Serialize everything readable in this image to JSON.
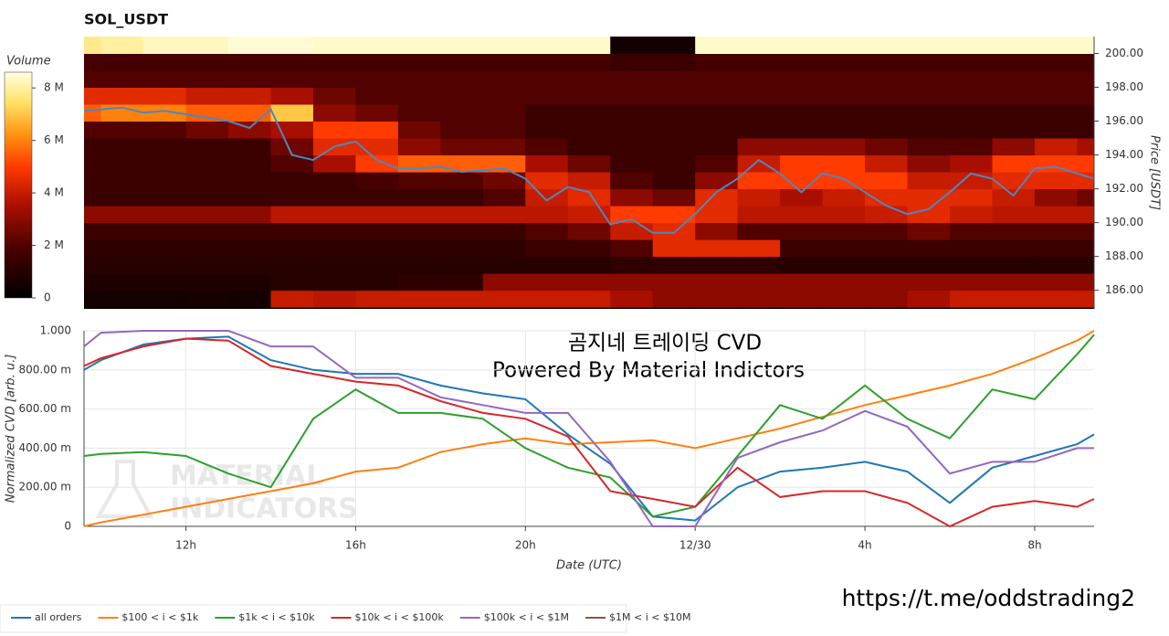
{
  "chart_data": [
    {
      "type": "heatmap",
      "title": "SOL_USDT",
      "y_label": "Price [USDT]",
      "colorbar_label": "Volume",
      "xlim": [
        9.6,
        33.4
      ],
      "x_edges": [
        9.6,
        10,
        11,
        12,
        13,
        14,
        15,
        16,
        17,
        18,
        19,
        20,
        21,
        22,
        23,
        24,
        25,
        26,
        27,
        28,
        29,
        30,
        31,
        32,
        33,
        33.4
      ],
      "y_edges": [
        185,
        186,
        187,
        188,
        189,
        190,
        191,
        192,
        193,
        194,
        195,
        196,
        197,
        198,
        199,
        200,
        201
      ],
      "z": [
        [
          0.5,
          0.5,
          0.5,
          0.6,
          0.5,
          4,
          3.8,
          4,
          4,
          4,
          4,
          4,
          4,
          3.5,
          3,
          3,
          3,
          3,
          3,
          3,
          3.5,
          4,
          4,
          4,
          4
        ],
        [
          0.8,
          0.8,
          0.8,
          0.8,
          0.8,
          1,
          1,
          1,
          1.2,
          1.2,
          3,
          3,
          3,
          3,
          3,
          3,
          3,
          3,
          3,
          3,
          3,
          3,
          3,
          3,
          3
        ],
        [
          1,
          1,
          1,
          1,
          1,
          1,
          1,
          1,
          1,
          1,
          1,
          1,
          1,
          1.2,
          1.2,
          1.2,
          1.2,
          1,
          1,
          1,
          1,
          1,
          1,
          1,
          1
        ],
        [
          1.2,
          1.2,
          1.2,
          1.2,
          1.2,
          1.2,
          1.2,
          1.2,
          1.2,
          1.2,
          1.2,
          1.5,
          1.5,
          2,
          4.5,
          4.5,
          4.5,
          1.5,
          1.5,
          1.5,
          1.5,
          1.5,
          1.5,
          1.5,
          1.5
        ],
        [
          1.5,
          1.5,
          1.5,
          1.5,
          1.5,
          1.5,
          1.5,
          1.5,
          1.5,
          1.5,
          1.5,
          2,
          2.5,
          4,
          4.5,
          3,
          2,
          2,
          2,
          2,
          2.5,
          2,
          2,
          2,
          2
        ],
        [
          3,
          3,
          3,
          3,
          3,
          3.8,
          3.8,
          3.8,
          3.8,
          3.8,
          3.8,
          3.8,
          4,
          5,
          5,
          4.5,
          3.8,
          3.8,
          3.8,
          4,
          4.5,
          4,
          3.8,
          3.8,
          3.8
        ],
        [
          1.5,
          1.5,
          1.5,
          1.5,
          1.5,
          1.5,
          1.5,
          1.5,
          1.5,
          1.5,
          2,
          4,
          4.5,
          3,
          2.5,
          4.5,
          4,
          3.5,
          4,
          4.5,
          4.5,
          4.5,
          4,
          3,
          2.5
        ],
        [
          1.5,
          1.5,
          1.5,
          1.5,
          1.5,
          1.5,
          1.5,
          1.8,
          2,
          2,
          2.5,
          4.5,
          4,
          2,
          1.5,
          3,
          5,
          5,
          5,
          5,
          4,
          4,
          4.5,
          4.5,
          4.5
        ],
        [
          1.5,
          1.5,
          1.5,
          1.5,
          1.5,
          2,
          3.5,
          5,
          5.5,
          5.5,
          5.5,
          3.5,
          2.5,
          1.5,
          1.5,
          2,
          4,
          5,
          5,
          4,
          3,
          3.5,
          5,
          5,
          5
        ],
        [
          1.5,
          1.5,
          1.5,
          1.5,
          1.5,
          2.5,
          4.5,
          4.5,
          3,
          2.5,
          2.5,
          2,
          1.5,
          1.5,
          1.5,
          1.5,
          3,
          3,
          3,
          2.5,
          2,
          2,
          3,
          4,
          3.5
        ],
        [
          2,
          2,
          2,
          2.5,
          3,
          3.5,
          5,
          5,
          2.5,
          2,
          2,
          1.5,
          1.5,
          1.5,
          1.5,
          1.5,
          1.5,
          1.5,
          1.5,
          1.5,
          1.5,
          1.5,
          1.5,
          1.5,
          1.5
        ],
        [
          5.5,
          6,
          6,
          5.5,
          5.5,
          7,
          3,
          2.5,
          2,
          2,
          2,
          1.5,
          1.5,
          1.5,
          1.5,
          1.5,
          1.5,
          1.5,
          1.5,
          1.5,
          1.5,
          1.5,
          1.5,
          1.5,
          1.5
        ],
        [
          4.5,
          4.5,
          4.5,
          4,
          4,
          3.5,
          2.5,
          2,
          2,
          2,
          2,
          2,
          2,
          2,
          2,
          2,
          2,
          2,
          2,
          2,
          2,
          2,
          2,
          2,
          2
        ],
        [
          2,
          2,
          2,
          2,
          2,
          2,
          2,
          2,
          2,
          2,
          2,
          2,
          2,
          2,
          2,
          2,
          2,
          2,
          2,
          2,
          2,
          2,
          2,
          2,
          2
        ],
        [
          1.8,
          1.8,
          1.8,
          1.8,
          1.8,
          1.8,
          1.8,
          1.8,
          1.8,
          1.8,
          1.8,
          1.8,
          1.8,
          1.5,
          1.5,
          1.8,
          1.8,
          1.8,
          1.8,
          1.8,
          1.8,
          1.8,
          1.8,
          1.8,
          1.8
        ],
        [
          7.8,
          8,
          8.3,
          8.3,
          8.5,
          8.5,
          8.4,
          8.4,
          8.4,
          8.4,
          8.4,
          8.4,
          8.4,
          0.5,
          0.5,
          8.4,
          8.4,
          8.4,
          8.4,
          8.4,
          8.4,
          8.4,
          8.4,
          8.4,
          8.4
        ]
      ],
      "clim": [
        0,
        8.6
      ],
      "cticks": [
        0,
        {
          "value": 2,
          "label": "2 M"
        },
        {
          "value": 4,
          "label": "4 M"
        },
        {
          "value": 6,
          "label": "6 M"
        },
        {
          "value": 8,
          "label": "8 M"
        }
      ],
      "ylim": [
        184.9,
        201.0
      ],
      "yticks": [
        {
          "value": 186,
          "label": "186.00"
        },
        {
          "value": 188,
          "label": "188.00"
        },
        {
          "value": 190,
          "label": "190.00"
        },
        {
          "value": 192,
          "label": "192.00"
        },
        {
          "value": 194,
          "label": "194.00"
        },
        {
          "value": 196,
          "label": "196.00"
        },
        {
          "value": 198,
          "label": "198.00"
        },
        {
          "value": 200,
          "label": "200.00"
        }
      ],
      "price_line": {
        "color": "#4f86c0",
        "x": [
          9.6,
          10,
          10.5,
          11,
          11.5,
          12,
          12.5,
          13,
          13.5,
          14,
          14.5,
          15,
          15.5,
          16,
          16.5,
          17,
          17.5,
          18,
          18.5,
          19,
          19.5,
          20,
          20.5,
          21,
          21.5,
          22,
          22.5,
          23,
          23.5,
          24,
          24.5,
          25,
          25.5,
          26,
          26.5,
          27,
          27.5,
          28,
          28.5,
          29,
          29.5,
          30,
          30.5,
          31,
          31.5,
          32,
          32.5,
          33,
          33.4
        ],
        "values": [
          196.6,
          196.7,
          196.8,
          196.5,
          196.6,
          196.4,
          196.2,
          196.0,
          195.6,
          196.7,
          194.0,
          193.7,
          194.5,
          194.8,
          193.7,
          193.2,
          193.2,
          193.3,
          193.0,
          193.1,
          193.2,
          192.6,
          191.3,
          192.1,
          191.8,
          189.9,
          190.2,
          189.4,
          189.4,
          190.5,
          191.8,
          192.6,
          193.7,
          192.9,
          191.8,
          192.9,
          192.6,
          191.8,
          191.0,
          190.5,
          190.8,
          191.8,
          192.9,
          192.6,
          191.6,
          193.2,
          193.3,
          192.9,
          192.6
        ]
      }
    },
    {
      "type": "line",
      "y_label": "Normalized CVD [arb. u.]",
      "x_label": "Date (UTC)",
      "annotations": [
        "곰지네 트레이딩 CVD",
        "Powered By Material Indictors"
      ],
      "watermark": [
        "MATERIAL",
        "INDICATORS"
      ],
      "footer": "https://t.me/oddstrading2",
      "xlim": [
        9.6,
        33.4
      ],
      "xticks": [
        {
          "value": 12,
          "label": "12h"
        },
        {
          "value": 16,
          "label": "16h"
        },
        {
          "value": 20,
          "label": "20h"
        },
        {
          "value": 24,
          "label": "12/30"
        },
        {
          "value": 28,
          "label": "4h"
        },
        {
          "value": 32,
          "label": "8h"
        }
      ],
      "ylim": [
        0,
        1
      ],
      "yticks": [
        0,
        {
          "value": 0.2,
          "label": "200.00 m"
        },
        {
          "value": 0.4,
          "label": "400.00 m"
        },
        {
          "value": 0.6,
          "label": "600.00 m"
        },
        {
          "value": 0.8,
          "label": "800.00 m"
        },
        {
          "value": 1,
          "label": "1.000"
        }
      ],
      "grid": true,
      "x": [
        9.6,
        10,
        11,
        12,
        13,
        14,
        15,
        16,
        17,
        18,
        19,
        20,
        21,
        22,
        23,
        24,
        25,
        26,
        27,
        28,
        29,
        30,
        31,
        32,
        33,
        33.4
      ],
      "series": [
        {
          "name": "all orders",
          "color": "#1f77b4",
          "values": [
            0.8,
            0.85,
            0.93,
            0.96,
            0.97,
            0.85,
            0.8,
            0.78,
            0.78,
            0.72,
            0.68,
            0.65,
            0.47,
            0.32,
            0.05,
            0.03,
            0.2,
            0.28,
            0.3,
            0.33,
            0.28,
            0.12,
            0.3,
            0.36,
            0.42,
            0.47
          ]
        },
        {
          "name": "$100 < i < $1k",
          "color": "#ff7f0e",
          "values": [
            0.0,
            0.02,
            0.06,
            0.1,
            0.14,
            0.18,
            0.22,
            0.28,
            0.3,
            0.38,
            0.42,
            0.45,
            0.42,
            0.43,
            0.44,
            0.4,
            0.45,
            0.5,
            0.56,
            0.62,
            0.67,
            0.72,
            0.78,
            0.86,
            0.95,
            1.0
          ]
        },
        {
          "name": "$1k < i < $10k",
          "color": "#2ca02c",
          "values": [
            0.36,
            0.37,
            0.38,
            0.36,
            0.27,
            0.2,
            0.55,
            0.7,
            0.58,
            0.58,
            0.55,
            0.4,
            0.3,
            0.25,
            0.05,
            0.1,
            0.36,
            0.62,
            0.55,
            0.72,
            0.55,
            0.45,
            0.7,
            0.65,
            0.88,
            0.98
          ]
        },
        {
          "name": "$10k < i < $100k",
          "color": "#d62728",
          "values": [
            0.82,
            0.86,
            0.92,
            0.96,
            0.95,
            0.82,
            0.78,
            0.74,
            0.72,
            0.64,
            0.58,
            0.55,
            0.46,
            0.18,
            0.14,
            0.1,
            0.3,
            0.15,
            0.18,
            0.18,
            0.12,
            0.0,
            0.1,
            0.13,
            0.1,
            0.14
          ]
        },
        {
          "name": "$100k < i < $1M",
          "color": "#9467bd",
          "values": [
            0.92,
            0.99,
            1.0,
            1.0,
            1.0,
            0.92,
            0.92,
            0.76,
            0.76,
            0.66,
            0.62,
            0.58,
            0.58,
            0.33,
            0.0,
            0.0,
            0.35,
            0.43,
            0.49,
            0.59,
            0.51,
            0.27,
            0.33,
            0.33,
            0.4,
            0.4
          ]
        },
        {
          "name": "$1M < i < $10M",
          "color": "#8c564b",
          "values": [
            null,
            null,
            null,
            null,
            null,
            null,
            null,
            null,
            null,
            null,
            null,
            null,
            null,
            null,
            null,
            null,
            null,
            null,
            null,
            null,
            null,
            null,
            null,
            null,
            null,
            null
          ]
        }
      ]
    }
  ]
}
